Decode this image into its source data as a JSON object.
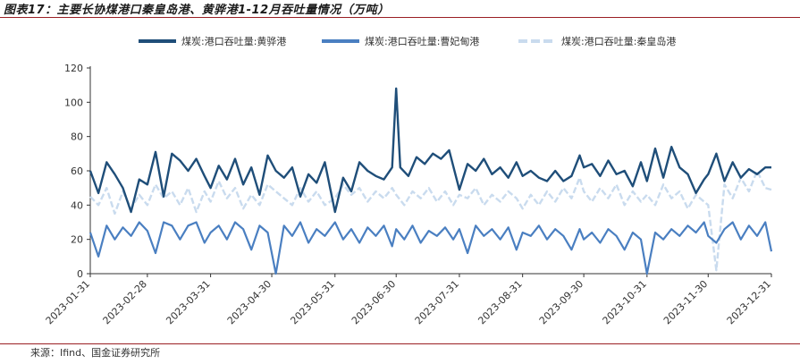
{
  "title": "图表17：主要长协煤港口秦皇岛港、黄骅港1-12月吞吐量情况（万吨）",
  "source": "来源：Ifind、国金证券研究所",
  "chart_data": {
    "type": "line",
    "title": "图表17：主要长协煤港口秦皇岛港、黄骅港1-12月吞吐量情况（万吨）",
    "xlabel": "",
    "ylabel": "",
    "ylim": [
      0,
      120
    ],
    "yticks": [
      0,
      20,
      40,
      60,
      80,
      100,
      120
    ],
    "x_range": [
      "2023-01-31",
      "2023-12-31"
    ],
    "xticks": [
      "2023-01-31",
      "2023-02-28",
      "2023-03-31",
      "2023-04-30",
      "2023-05-31",
      "2023-06-30",
      "2023-07-31",
      "2023-08-31",
      "2023-09-30",
      "2023-10-31",
      "2023-11-30",
      "2023-12-31"
    ],
    "grid": false,
    "legend_position": "top",
    "series": [
      {
        "name": "煤炭:港口吞吐量:黄骅港",
        "color": "#1f4e79",
        "points": [
          [
            "2023-01-31",
            60
          ],
          [
            "2023-02-04",
            47
          ],
          [
            "2023-02-08",
            65
          ],
          [
            "2023-02-12",
            58
          ],
          [
            "2023-02-16",
            50
          ],
          [
            "2023-02-20",
            36
          ],
          [
            "2023-02-24",
            55
          ],
          [
            "2023-02-28",
            52
          ],
          [
            "2023-03-04",
            71
          ],
          [
            "2023-03-08",
            45
          ],
          [
            "2023-03-12",
            70
          ],
          [
            "2023-03-16",
            66
          ],
          [
            "2023-03-20",
            60
          ],
          [
            "2023-03-24",
            67
          ],
          [
            "2023-03-28",
            57
          ],
          [
            "2023-03-31",
            50
          ],
          [
            "2023-04-04",
            63
          ],
          [
            "2023-04-08",
            55
          ],
          [
            "2023-04-12",
            67
          ],
          [
            "2023-04-16",
            52
          ],
          [
            "2023-04-20",
            62
          ],
          [
            "2023-04-24",
            46
          ],
          [
            "2023-04-28",
            69
          ],
          [
            "2023-05-02",
            60
          ],
          [
            "2023-05-06",
            56
          ],
          [
            "2023-05-10",
            62
          ],
          [
            "2023-05-14",
            45
          ],
          [
            "2023-05-18",
            58
          ],
          [
            "2023-05-22",
            53
          ],
          [
            "2023-05-26",
            65
          ],
          [
            "2023-05-31",
            36
          ],
          [
            "2023-06-04",
            56
          ],
          [
            "2023-06-08",
            48
          ],
          [
            "2023-06-12",
            65
          ],
          [
            "2023-06-16",
            60
          ],
          [
            "2023-06-20",
            57
          ],
          [
            "2023-06-24",
            55
          ],
          [
            "2023-06-28",
            62
          ],
          [
            "2023-06-30",
            108
          ],
          [
            "2023-07-02",
            62
          ],
          [
            "2023-07-06",
            57
          ],
          [
            "2023-07-10",
            68
          ],
          [
            "2023-07-14",
            64
          ],
          [
            "2023-07-18",
            70
          ],
          [
            "2023-07-22",
            67
          ],
          [
            "2023-07-26",
            72
          ],
          [
            "2023-07-31",
            49
          ],
          [
            "2023-08-04",
            64
          ],
          [
            "2023-08-08",
            60
          ],
          [
            "2023-08-12",
            67
          ],
          [
            "2023-08-16",
            58
          ],
          [
            "2023-08-20",
            62
          ],
          [
            "2023-08-24",
            56
          ],
          [
            "2023-08-28",
            65
          ],
          [
            "2023-08-31",
            57
          ],
          [
            "2023-09-04",
            60
          ],
          [
            "2023-09-08",
            56
          ],
          [
            "2023-09-12",
            54
          ],
          [
            "2023-09-16",
            60
          ],
          [
            "2023-09-20",
            54
          ],
          [
            "2023-09-24",
            57
          ],
          [
            "2023-09-28",
            69
          ],
          [
            "2023-09-30",
            62
          ],
          [
            "2023-10-04",
            64
          ],
          [
            "2023-10-08",
            57
          ],
          [
            "2023-10-12",
            66
          ],
          [
            "2023-10-16",
            58
          ],
          [
            "2023-10-20",
            60
          ],
          [
            "2023-10-24",
            51
          ],
          [
            "2023-10-28",
            65
          ],
          [
            "2023-10-31",
            54
          ],
          [
            "2023-11-04",
            73
          ],
          [
            "2023-11-08",
            56
          ],
          [
            "2023-11-12",
            74
          ],
          [
            "2023-11-16",
            62
          ],
          [
            "2023-11-20",
            58
          ],
          [
            "2023-11-24",
            47
          ],
          [
            "2023-11-28",
            55
          ],
          [
            "2023-11-30",
            58
          ],
          [
            "2023-12-04",
            70
          ],
          [
            "2023-12-08",
            54
          ],
          [
            "2023-12-12",
            65
          ],
          [
            "2023-12-16",
            56
          ],
          [
            "2023-12-20",
            61
          ],
          [
            "2023-12-24",
            58
          ],
          [
            "2023-12-28",
            62
          ],
          [
            "2023-12-31",
            62
          ]
        ]
      },
      {
        "name": "煤炭:港口吞吐量:曹妃甸港",
        "color": "#4a7fc1",
        "points": [
          [
            "2023-01-31",
            24
          ],
          [
            "2023-02-04",
            10
          ],
          [
            "2023-02-08",
            28
          ],
          [
            "2023-02-12",
            20
          ],
          [
            "2023-02-16",
            27
          ],
          [
            "2023-02-20",
            22
          ],
          [
            "2023-02-24",
            30
          ],
          [
            "2023-02-28",
            25
          ],
          [
            "2023-03-04",
            12
          ],
          [
            "2023-03-08",
            30
          ],
          [
            "2023-03-12",
            28
          ],
          [
            "2023-03-16",
            20
          ],
          [
            "2023-03-20",
            28
          ],
          [
            "2023-03-24",
            30
          ],
          [
            "2023-03-28",
            18
          ],
          [
            "2023-03-31",
            24
          ],
          [
            "2023-04-04",
            28
          ],
          [
            "2023-04-08",
            20
          ],
          [
            "2023-04-12",
            30
          ],
          [
            "2023-04-16",
            26
          ],
          [
            "2023-04-20",
            14
          ],
          [
            "2023-04-24",
            28
          ],
          [
            "2023-04-28",
            24
          ],
          [
            "2023-05-02",
            0
          ],
          [
            "2023-05-06",
            28
          ],
          [
            "2023-05-10",
            22
          ],
          [
            "2023-05-14",
            30
          ],
          [
            "2023-05-18",
            18
          ],
          [
            "2023-05-22",
            26
          ],
          [
            "2023-05-26",
            22
          ],
          [
            "2023-05-31",
            30
          ],
          [
            "2023-06-04",
            20
          ],
          [
            "2023-06-08",
            26
          ],
          [
            "2023-06-12",
            18
          ],
          [
            "2023-06-16",
            27
          ],
          [
            "2023-06-20",
            22
          ],
          [
            "2023-06-24",
            28
          ],
          [
            "2023-06-28",
            16
          ],
          [
            "2023-06-30",
            26
          ],
          [
            "2023-07-04",
            20
          ],
          [
            "2023-07-08",
            28
          ],
          [
            "2023-07-12",
            18
          ],
          [
            "2023-07-16",
            25
          ],
          [
            "2023-07-20",
            22
          ],
          [
            "2023-07-24",
            27
          ],
          [
            "2023-07-28",
            20
          ],
          [
            "2023-07-31",
            26
          ],
          [
            "2023-08-04",
            12
          ],
          [
            "2023-08-08",
            28
          ],
          [
            "2023-08-12",
            22
          ],
          [
            "2023-08-16",
            26
          ],
          [
            "2023-08-20",
            20
          ],
          [
            "2023-08-24",
            27
          ],
          [
            "2023-08-28",
            14
          ],
          [
            "2023-08-31",
            24
          ],
          [
            "2023-09-04",
            22
          ],
          [
            "2023-09-08",
            28
          ],
          [
            "2023-09-12",
            20
          ],
          [
            "2023-09-16",
            26
          ],
          [
            "2023-09-20",
            22
          ],
          [
            "2023-09-24",
            14
          ],
          [
            "2023-09-28",
            26
          ],
          [
            "2023-09-30",
            20
          ],
          [
            "2023-10-04",
            24
          ],
          [
            "2023-10-08",
            18
          ],
          [
            "2023-10-12",
            26
          ],
          [
            "2023-10-16",
            22
          ],
          [
            "2023-10-20",
            14
          ],
          [
            "2023-10-24",
            24
          ],
          [
            "2023-10-28",
            20
          ],
          [
            "2023-10-31",
            0
          ],
          [
            "2023-11-04",
            24
          ],
          [
            "2023-11-08",
            20
          ],
          [
            "2023-11-12",
            26
          ],
          [
            "2023-11-16",
            22
          ],
          [
            "2023-11-20",
            28
          ],
          [
            "2023-11-24",
            24
          ],
          [
            "2023-11-28",
            30
          ],
          [
            "2023-11-30",
            22
          ],
          [
            "2023-12-04",
            18
          ],
          [
            "2023-12-08",
            26
          ],
          [
            "2023-12-12",
            30
          ],
          [
            "2023-12-16",
            20
          ],
          [
            "2023-12-20",
            28
          ],
          [
            "2023-12-24",
            22
          ],
          [
            "2023-12-28",
            30
          ],
          [
            "2023-12-31",
            13
          ]
        ]
      },
      {
        "name": "煤炭:港口吞吐量:秦皇岛港",
        "color": "#c9dbee",
        "points": [
          [
            "2023-01-31",
            45
          ],
          [
            "2023-02-04",
            40
          ],
          [
            "2023-02-08",
            50
          ],
          [
            "2023-02-12",
            35
          ],
          [
            "2023-02-16",
            48
          ],
          [
            "2023-02-20",
            38
          ],
          [
            "2023-02-24",
            46
          ],
          [
            "2023-02-28",
            40
          ],
          [
            "2023-03-04",
            52
          ],
          [
            "2023-03-08",
            44
          ],
          [
            "2023-03-12",
            48
          ],
          [
            "2023-03-16",
            40
          ],
          [
            "2023-03-20",
            50
          ],
          [
            "2023-03-24",
            36
          ],
          [
            "2023-03-28",
            48
          ],
          [
            "2023-03-31",
            42
          ],
          [
            "2023-04-04",
            54
          ],
          [
            "2023-04-08",
            44
          ],
          [
            "2023-04-12",
            50
          ],
          [
            "2023-04-16",
            38
          ],
          [
            "2023-04-20",
            46
          ],
          [
            "2023-04-24",
            40
          ],
          [
            "2023-04-28",
            52
          ],
          [
            "2023-05-02",
            48
          ],
          [
            "2023-05-06",
            44
          ],
          [
            "2023-05-10",
            40
          ],
          [
            "2023-05-14",
            50
          ],
          [
            "2023-05-18",
            42
          ],
          [
            "2023-05-22",
            48
          ],
          [
            "2023-05-26",
            40
          ],
          [
            "2023-05-31",
            44
          ],
          [
            "2023-06-04",
            52
          ],
          [
            "2023-06-08",
            46
          ],
          [
            "2023-06-12",
            50
          ],
          [
            "2023-06-16",
            42
          ],
          [
            "2023-06-20",
            48
          ],
          [
            "2023-06-24",
            44
          ],
          [
            "2023-06-28",
            50
          ],
          [
            "2023-06-30",
            46
          ],
          [
            "2023-07-04",
            40
          ],
          [
            "2023-07-08",
            48
          ],
          [
            "2023-07-12",
            44
          ],
          [
            "2023-07-16",
            50
          ],
          [
            "2023-07-20",
            42
          ],
          [
            "2023-07-24",
            48
          ],
          [
            "2023-07-28",
            40
          ],
          [
            "2023-07-31",
            46
          ],
          [
            "2023-08-04",
            44
          ],
          [
            "2023-08-08",
            50
          ],
          [
            "2023-08-12",
            40
          ],
          [
            "2023-08-16",
            46
          ],
          [
            "2023-08-20",
            42
          ],
          [
            "2023-08-24",
            48
          ],
          [
            "2023-08-28",
            44
          ],
          [
            "2023-08-31",
            38
          ],
          [
            "2023-09-04",
            46
          ],
          [
            "2023-09-08",
            40
          ],
          [
            "2023-09-12",
            48
          ],
          [
            "2023-09-16",
            42
          ],
          [
            "2023-09-20",
            50
          ],
          [
            "2023-09-24",
            44
          ],
          [
            "2023-09-28",
            56
          ],
          [
            "2023-09-30",
            48
          ],
          [
            "2023-10-04",
            42
          ],
          [
            "2023-10-08",
            50
          ],
          [
            "2023-10-12",
            44
          ],
          [
            "2023-10-16",
            52
          ],
          [
            "2023-10-20",
            40
          ],
          [
            "2023-10-24",
            48
          ],
          [
            "2023-10-28",
            42
          ],
          [
            "2023-10-31",
            46
          ],
          [
            "2023-11-04",
            40
          ],
          [
            "2023-11-08",
            52
          ],
          [
            "2023-11-12",
            44
          ],
          [
            "2023-11-16",
            48
          ],
          [
            "2023-11-20",
            38
          ],
          [
            "2023-11-24",
            46
          ],
          [
            "2023-11-28",
            42
          ],
          [
            "2023-11-30",
            40
          ],
          [
            "2023-12-04",
            2
          ],
          [
            "2023-12-08",
            52
          ],
          [
            "2023-12-12",
            44
          ],
          [
            "2023-12-16",
            56
          ],
          [
            "2023-12-20",
            48
          ],
          [
            "2023-12-24",
            60
          ],
          [
            "2023-12-28",
            50
          ],
          [
            "2023-12-31",
            49
          ]
        ]
      }
    ]
  },
  "legend": [
    {
      "label": "煤炭:港口吞吐量:黄骅港",
      "color": "#1f4e79",
      "style": "solid"
    },
    {
      "label": "煤炭:港口吞吐量:曹妃甸港",
      "color": "#4a7fc1",
      "style": "solid"
    },
    {
      "label": "煤炭:港口吞吐量:秦皇岛港",
      "color": "#c9dbee",
      "style": "dashed"
    }
  ]
}
